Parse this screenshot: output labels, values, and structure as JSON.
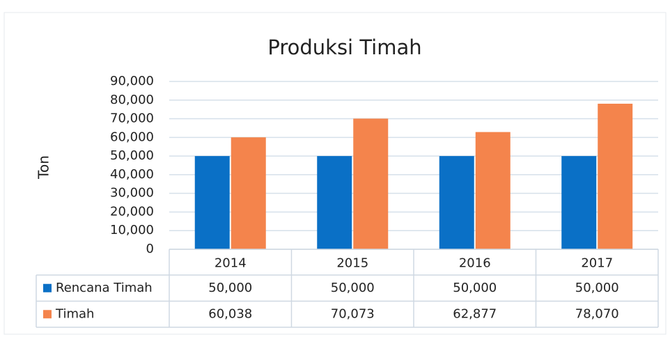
{
  "chart_data": {
    "type": "bar",
    "title": "Produksi Timah",
    "y_label": "Ton",
    "categories": [
      "2014",
      "2015",
      "2016",
      "2017"
    ],
    "series": [
      {
        "name": "Rencana Timah",
        "color": "#0a70c6",
        "values": [
          50000,
          50000,
          50000,
          50000
        ],
        "value_labels": [
          "50,000",
          "50,000",
          "50,000",
          "50,000"
        ]
      },
      {
        "name": "Timah",
        "color": "#f4844c",
        "values": [
          60038,
          70073,
          62877,
          78070
        ],
        "value_labels": [
          "60,038",
          "70,073",
          "62,877",
          "78,070"
        ]
      }
    ],
    "ylim": [
      0,
      90000
    ],
    "yticks": [
      0,
      {
        "value": 10000,
        "label": "10,000"
      },
      {
        "value": 20000,
        "label": "20,000"
      },
      {
        "value": 30000,
        "label": "30,000"
      },
      {
        "value": 40000,
        "label": "40,000"
      },
      {
        "value": 50000,
        "label": "50,000"
      },
      {
        "value": 60000,
        "label": "60,000"
      },
      {
        "value": 70000,
        "label": "70,000"
      },
      {
        "value": 80000,
        "label": "80,000"
      },
      {
        "value": 90000,
        "label": "90,000"
      }
    ],
    "grid": true,
    "data_table": true
  }
}
